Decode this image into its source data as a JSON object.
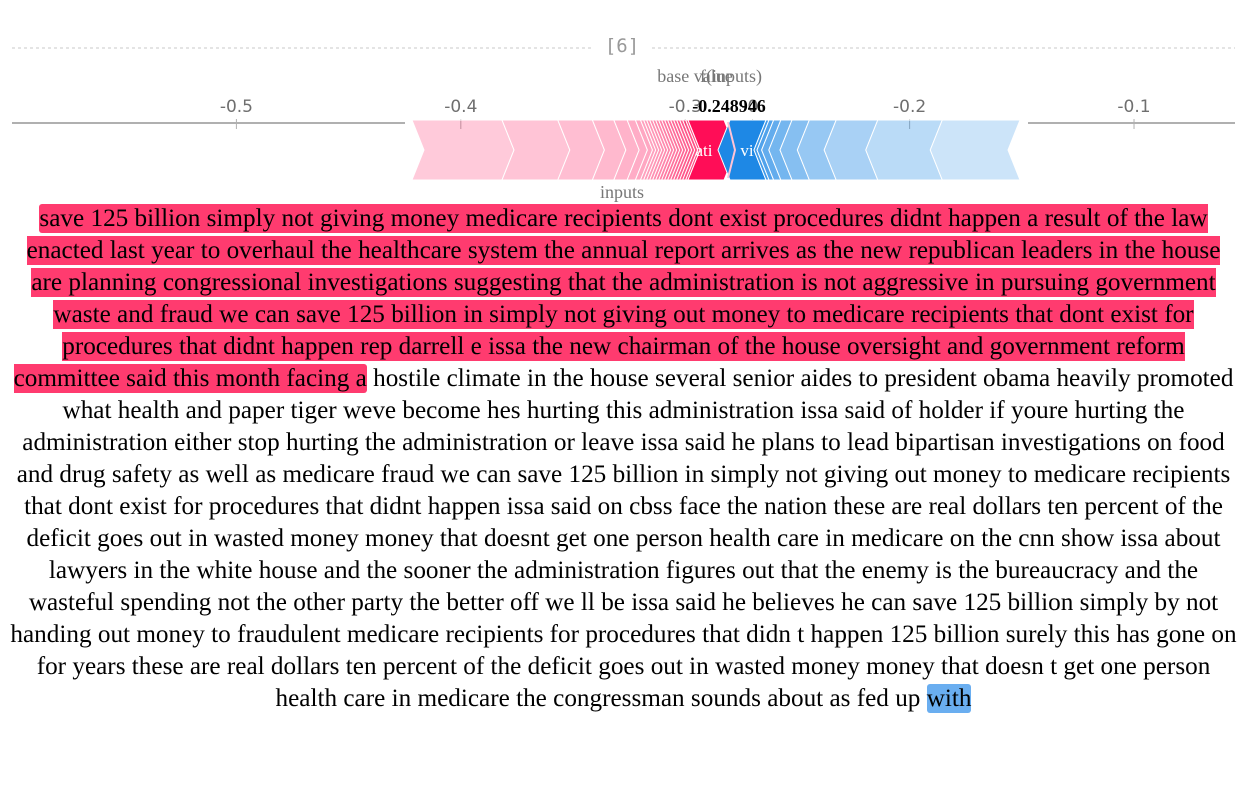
{
  "cell_counter": "[6]",
  "force_plot": {
    "base_value_label": "base value",
    "fx_label": "f(inputs)",
    "fx_value": "-0.248946",
    "inputs_label": "inputs",
    "ticks": [
      "-0.5",
      "-0.4",
      "-0.3",
      "-0.",
      "-0.2",
      "-0.1"
    ],
    "tick_values": [
      -0.5,
      -0.4,
      -0.3,
      -0.27,
      -0.2,
      -0.1
    ],
    "domain": [
      -0.6,
      -0.055
    ],
    "red_segment_text": "ati",
    "blue_segment_text": "vi",
    "colors": {
      "positive": "#ff0d57",
      "negative": "#1e88e5"
    }
  },
  "chart_data": {
    "type": "force",
    "output_value": -0.248946,
    "axis_ticks": [
      -0.5,
      -0.4,
      -0.3,
      -0.2,
      -0.1
    ]
  },
  "text": {
    "lead_highlight": "save 125 billion simply not giving money medicare recipients dont exist procedures didnt happen a result of the law enacted last year to overhaul the healthcare system the annual report arrives as the new republican leaders in the house are planning congressional investigations suggesting that the administration is not aggressive in pursuing government waste and fraud we can save 125 billion in simply not giving out money to medicare recipients that dont exist for procedures that didnt happen rep darrell e issa the new chairman of the house oversight and government reform committee said this month facing a",
    "body": " hostile climate in the house several senior aides to president obama heavily promoted what health and paper tiger weve become hes hurting this administration issa said of holder if youre hurting the administration either stop hurting the administration or leave issa said he plans to lead bipartisan investigations on food and drug safety as well as medicare fraud we can save 125 billion in simply not giving out money to medicare recipients that dont exist for procedures that didnt happen issa said on cbss face the nation these are real dollars ten percent of the deficit goes out in wasted money money that doesnt get one person health care in medicare on the cnn show issa about lawyers in the white house and the sooner the administration figures out that the enemy is the bureaucracy and the wasteful spending not the other party the better off we ll be issa said he believes he can save 125 billion simply by not handing out money to fraudulent medicare recipients for procedures that didn t happen 125 billion surely this has gone on for years these are real dollars ten percent of the deficit goes out in wasted money money that doesn t get one person health care in medicare the congressman sounds about as fed up ",
    "tail_highlight": "with",
    "colors": {
      "lead": "#ff3b6f",
      "tail": "#6aaef0"
    }
  }
}
